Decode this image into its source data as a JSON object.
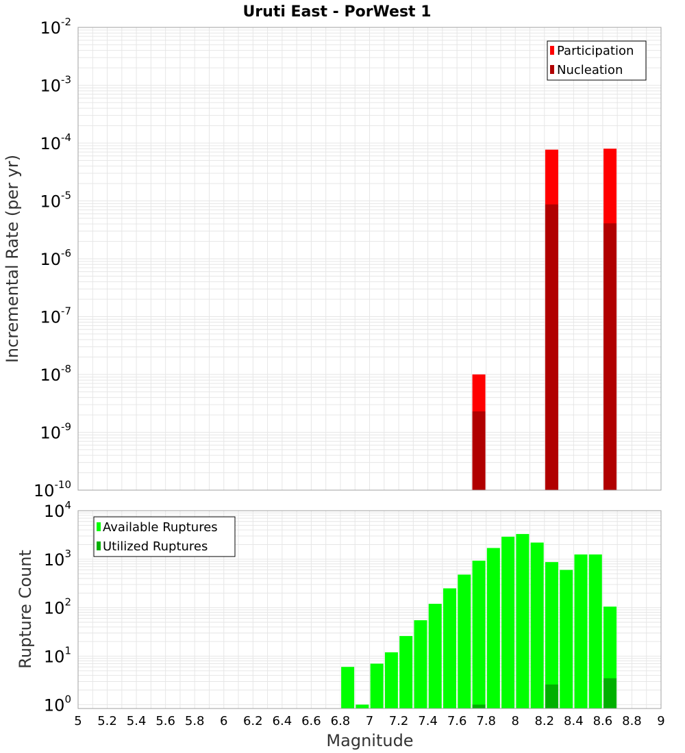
{
  "chart_data": [
    {
      "type": "bar",
      "title": "Uruti East - PorWest 1",
      "ylabel": "Incremental Rate (per yr)",
      "xlabel": "",
      "xlim": [
        5,
        9
      ],
      "yscale": "log",
      "ylim_exp": [
        -10,
        -2
      ],
      "ytick_exponents": [
        "-2",
        "-3",
        "-4",
        "-5",
        "-6",
        "-7",
        "-8",
        "-9",
        "-10"
      ],
      "legend": {
        "position": "top-right",
        "entries": [
          "Participation",
          "Nucleation"
        ]
      },
      "colors": {
        "Participation": "#ff0000",
        "Nucleation": "#b00000"
      },
      "series": [
        {
          "name": "Participation",
          "x": [
            7.75,
            8.25,
            8.65
          ],
          "values": [
            1e-08,
            7.7e-05,
            8e-05
          ]
        },
        {
          "name": "Nucleation",
          "x": [
            7.75,
            8.25,
            8.65
          ],
          "values": [
            2.3e-09,
            8.7e-06,
            4.1e-06
          ]
        }
      ]
    },
    {
      "type": "bar",
      "title": "",
      "ylabel": "Rupture Count",
      "xlabel": "Magnitude",
      "xlim": [
        5,
        9
      ],
      "yscale": "log",
      "ylim_exp": [
        0,
        4
      ],
      "ytick_exponents": [
        "4",
        "3",
        "2",
        "1",
        "0"
      ],
      "xticks": [
        "5",
        "5.2",
        "5.4",
        "5.6",
        "5.8",
        "6",
        "6.2",
        "6.4",
        "6.6",
        "6.8",
        "7",
        "7.2",
        "7.4",
        "7.6",
        "7.8",
        "8",
        "8.2",
        "8.4",
        "8.6",
        "8.8",
        "9"
      ],
      "legend": {
        "position": "top-left",
        "entries": [
          "Available Ruptures",
          "Utilized Ruptures"
        ]
      },
      "colors": {
        "Available Ruptures": "#00ff00",
        "Utilized Ruptures": "#00b000"
      },
      "series": [
        {
          "name": "Available Ruptures",
          "x": [
            6.85,
            6.95,
            7.05,
            7.15,
            7.25,
            7.35,
            7.45,
            7.55,
            7.65,
            7.75,
            7.85,
            7.95,
            8.05,
            8.15,
            8.25,
            8.35,
            8.45,
            8.55,
            8.65
          ],
          "values": [
            6,
            1,
            7,
            12,
            26,
            55,
            120,
            250,
            480,
            930,
            1700,
            2900,
            3300,
            2200,
            870,
            600,
            1250,
            1250,
            105
          ]
        },
        {
          "name": "Utilized Ruptures",
          "x": [
            7.75,
            8.25,
            8.65
          ],
          "values": [
            1,
            2.6,
            3.5
          ]
        }
      ]
    }
  ]
}
